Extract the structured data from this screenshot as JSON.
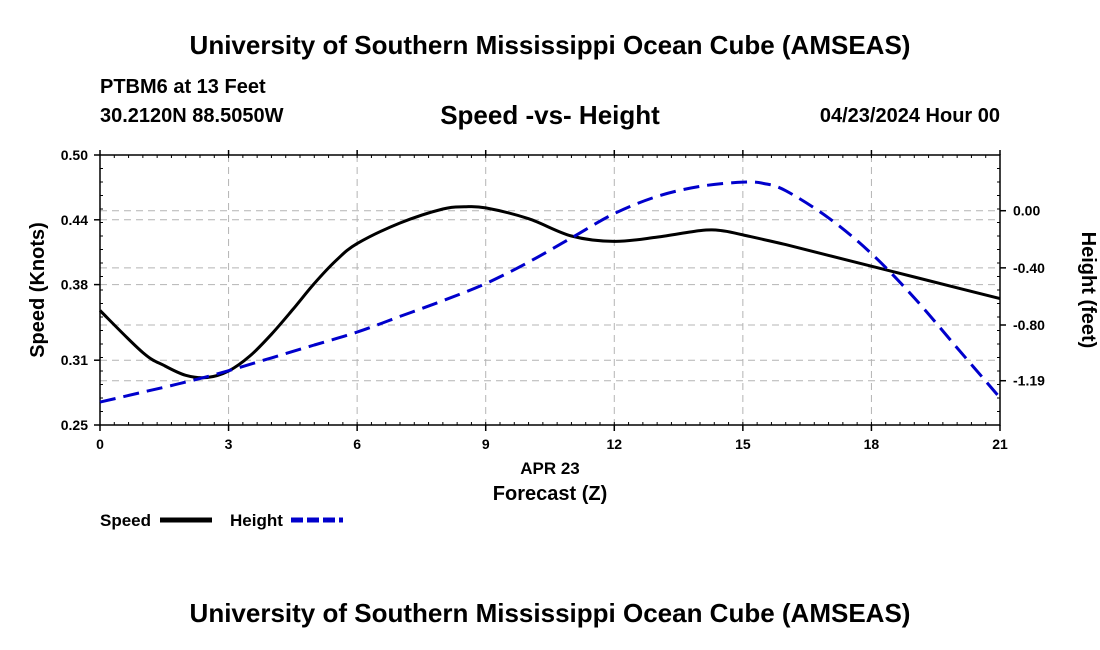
{
  "header": {
    "title": "University of Southern Mississippi Ocean Cube (AMSEAS)",
    "station": "PTBM6 at 13 Feet",
    "coords": "30.2120N  88.5050W",
    "chart_title": "Speed -vs- Height",
    "datetime": "04/23/2024 Hour 00"
  },
  "footer": {
    "title": "University of Southern Mississippi Ocean Cube (AMSEAS)"
  },
  "chart_data": {
    "type": "line",
    "title": "Speed -vs- Height",
    "xlabel": "Forecast (Z)",
    "xlabel_date": "APR 23",
    "xlim": [
      0,
      21
    ],
    "x_ticks": [
      0,
      3,
      6,
      9,
      12,
      15,
      18,
      21
    ],
    "x_tick_labels": [
      "0",
      "3",
      "6",
      "9",
      "12",
      "15",
      "18",
      "21"
    ],
    "ylabel_left": "Speed (Knots)",
    "ylim_left": [
      0.25,
      0.5
    ],
    "y_ticks_left": [
      0.25,
      0.31,
      0.38,
      0.44,
      0.5
    ],
    "y_tick_labels_left": [
      "0.25",
      "0.31",
      "0.38",
      "0.44",
      "0.50"
    ],
    "ylabel_right": "Height (feet)",
    "ylim_right": [
      -1.5,
      0.39
    ],
    "y_ticks_right": [
      0.0,
      -0.4,
      -0.8,
      -1.19
    ],
    "y_tick_labels_right": [
      "0.00",
      "-0.40",
      "-0.80",
      "-1.19"
    ],
    "grid": true,
    "legend_position": "bottom-left",
    "series": [
      {
        "name": "Speed",
        "axis": "left",
        "color": "#000000",
        "style": "solid",
        "x": [
          0,
          1,
          1.5,
          2,
          2.5,
          3,
          3.5,
          4,
          4.5,
          5,
          5.5,
          6,
          7,
          8,
          8.5,
          9,
          10,
          11,
          12,
          13,
          14,
          14.5,
          15,
          16,
          17,
          18,
          19,
          20,
          21
        ],
        "values": [
          0.356,
          0.317,
          0.305,
          0.296,
          0.294,
          0.3,
          0.314,
          0.334,
          0.357,
          0.381,
          0.402,
          0.418,
          0.437,
          0.45,
          0.452,
          0.451,
          0.441,
          0.425,
          0.42,
          0.424,
          0.43,
          0.43,
          0.426,
          0.417,
          0.407,
          0.397,
          0.387,
          0.377,
          0.367
        ]
      },
      {
        "name": "Height",
        "axis": "right",
        "color": "#0000cc",
        "style": "dashed",
        "x": [
          0,
          1,
          2,
          3,
          4,
          5,
          6,
          7,
          8,
          9,
          10,
          11,
          12,
          13,
          14,
          15,
          15.5,
          16,
          17,
          18,
          19,
          20,
          21
        ],
        "values": [
          -1.34,
          -1.27,
          -1.2,
          -1.12,
          -1.03,
          -0.94,
          -0.85,
          -0.74,
          -0.63,
          -0.51,
          -0.36,
          -0.19,
          -0.02,
          0.1,
          0.17,
          0.2,
          0.19,
          0.14,
          -0.05,
          -0.3,
          -0.61,
          -0.96,
          -1.31
        ]
      }
    ]
  }
}
